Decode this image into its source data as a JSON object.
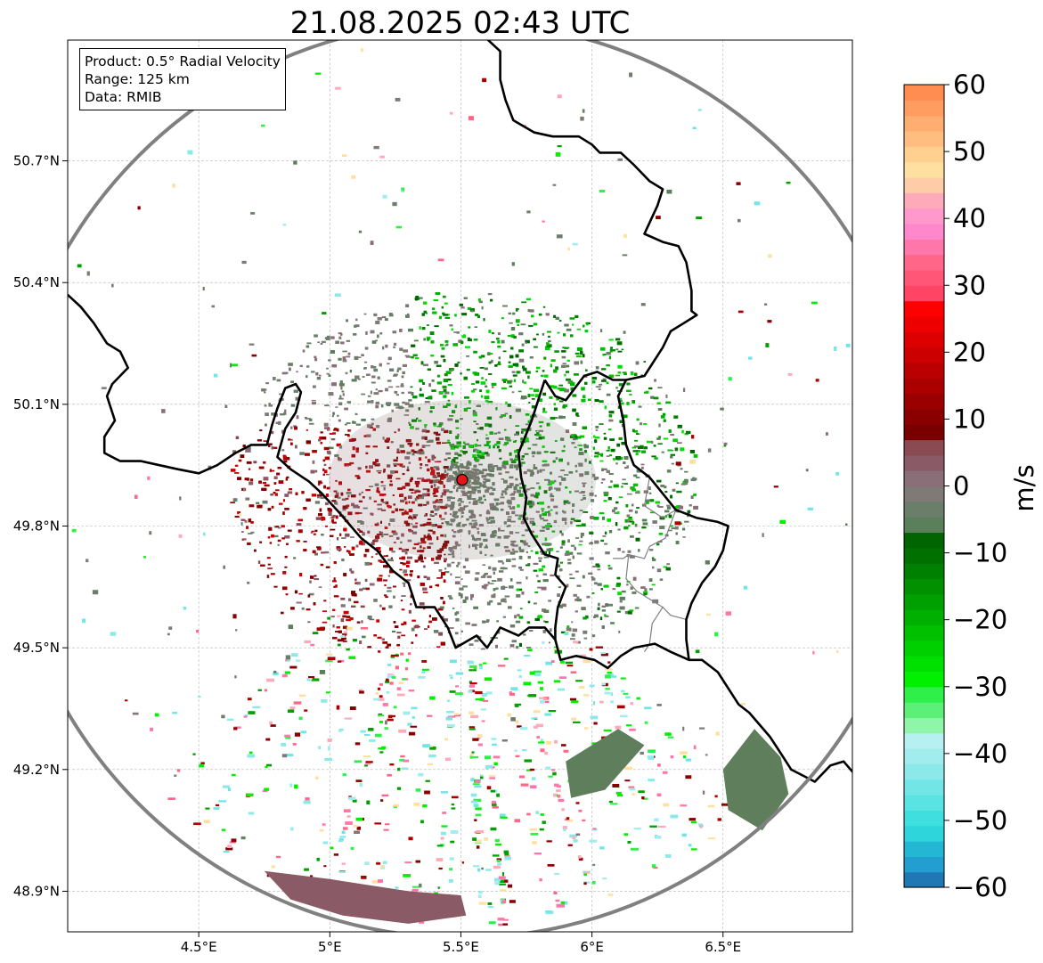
{
  "title": "21.08.2025 02:43 UTC",
  "info": {
    "product": "Product: 0.5° Radial Velocity",
    "range": "Range: 125 km",
    "data": "Data: RMIB"
  },
  "axes": {
    "lat_ticks": [
      {
        "value": 50.7,
        "label": "50.7°N"
      },
      {
        "value": 50.4,
        "label": "50.4°N"
      },
      {
        "value": 50.1,
        "label": "50.1°N"
      },
      {
        "value": 49.8,
        "label": "49.8°N"
      },
      {
        "value": 49.5,
        "label": "49.5°N"
      },
      {
        "value": 49.2,
        "label": "49.2°N"
      },
      {
        "value": 48.9,
        "label": "48.9°N"
      }
    ],
    "lon_ticks": [
      {
        "value": 4.5,
        "label": "4.5°E"
      },
      {
        "value": 5.0,
        "label": "5°E"
      },
      {
        "value": 5.5,
        "label": "5.5°E"
      },
      {
        "value": 6.0,
        "label": "6°E"
      },
      {
        "value": 6.5,
        "label": "6.5°E"
      }
    ],
    "lon_range": [
      4.0,
      7.0
    ],
    "lat_range": [
      48.8,
      51.0
    ],
    "grid": true
  },
  "radar": {
    "lon": 5.505,
    "lat": 49.914,
    "range_km": 125,
    "site_color": "#e8141a"
  },
  "colorbar": {
    "unit": "m/s",
    "min": -60,
    "max": 60,
    "tick_values": [
      60,
      50,
      40,
      30,
      20,
      10,
      0,
      -10,
      -20,
      -30,
      -40,
      -50,
      -60
    ],
    "tick_labels": [
      "60",
      "50",
      "40",
      "30",
      "20",
      "10",
      "0",
      "−10",
      "−20",
      "−30",
      "−40",
      "−50",
      "−60"
    ],
    "colors": [
      "#1f77b4",
      "#239ed0",
      "#24b7d4",
      "#2ed6dc",
      "#3fdfe0",
      "#5ae3e3",
      "#72e6e6",
      "#8be9e9",
      "#a1ecec",
      "#b7f0f0",
      "#8ff5a8",
      "#5cf078",
      "#2ef048",
      "#00f000",
      "#00e000",
      "#00d000",
      "#00c000",
      "#00b000",
      "#00a000",
      "#009000",
      "#008000",
      "#007000",
      "#006400",
      "#5b7f5b",
      "#6a7e6a",
      "#7f7a76",
      "#8a6e78",
      "#8a5a66",
      "#8a4a52",
      "#7a0000",
      "#8a0000",
      "#9a0000",
      "#aa0000",
      "#ba0000",
      "#cc0000",
      "#dd0000",
      "#ee0000",
      "#ff0000",
      "#ff4466",
      "#ff5577",
      "#ff6688",
      "#ff77aa",
      "#ff88cc",
      "#ff99cc",
      "#ffaabb",
      "#ffcca8",
      "#ffe0a0",
      "#ffd090",
      "#ffbe80",
      "#ffad70",
      "#ff9c60",
      "#ff8c50"
    ]
  },
  "borders": {
    "national": [
      [
        [
          4.0,
          50.37
        ],
        [
          4.05,
          50.34
        ],
        [
          4.1,
          50.3
        ],
        [
          4.15,
          50.25
        ],
        [
          4.2,
          50.23
        ],
        [
          4.23,
          50.19
        ],
        [
          4.17,
          50.15
        ],
        [
          4.15,
          50.12
        ],
        [
          4.18,
          50.06
        ],
        [
          4.14,
          50.02
        ],
        [
          4.14,
          49.98
        ],
        [
          4.2,
          49.96
        ],
        [
          4.24,
          49.96
        ],
        [
          4.28,
          49.96
        ],
        [
          4.35,
          49.95
        ],
        [
          4.42,
          49.94
        ],
        [
          4.5,
          49.93
        ],
        [
          4.57,
          49.95
        ],
        [
          4.64,
          49.98
        ],
        [
          4.7,
          50.0
        ],
        [
          4.76,
          50.0
        ],
        [
          4.78,
          50.05
        ],
        [
          4.8,
          50.09
        ],
        [
          4.83,
          50.14
        ],
        [
          4.87,
          50.15
        ],
        [
          4.89,
          50.13
        ],
        [
          4.87,
          50.08
        ],
        [
          4.83,
          50.04
        ],
        [
          4.8,
          49.97
        ],
        [
          4.85,
          49.94
        ],
        [
          4.92,
          49.91
        ],
        [
          4.97,
          49.88
        ],
        [
          5.04,
          49.83
        ],
        [
          5.08,
          49.8
        ],
        [
          5.12,
          49.77
        ],
        [
          5.18,
          49.74
        ],
        [
          5.24,
          49.69
        ],
        [
          5.3,
          49.66
        ],
        [
          5.33,
          49.6
        ],
        [
          5.4,
          49.6
        ],
        [
          5.45,
          49.55
        ],
        [
          5.48,
          49.5
        ],
        [
          5.56,
          49.53
        ],
        [
          5.6,
          49.5
        ],
        [
          5.65,
          49.55
        ],
        [
          5.72,
          49.53
        ],
        [
          5.76,
          49.55
        ],
        [
          5.82,
          49.55
        ],
        [
          5.86,
          49.52
        ],
        [
          5.88,
          49.47
        ],
        [
          5.94,
          49.48
        ],
        [
          6.01,
          49.47
        ],
        [
          6.06,
          49.45
        ],
        [
          6.11,
          49.48
        ],
        [
          6.16,
          49.5
        ],
        [
          6.24,
          49.51
        ],
        [
          6.3,
          49.49
        ],
        [
          6.37,
          49.47
        ],
        [
          6.42,
          49.47
        ],
        [
          6.48,
          49.44
        ],
        [
          6.56,
          49.36
        ],
        [
          6.6,
          49.34
        ],
        [
          6.68,
          49.28
        ],
        [
          6.71,
          49.25
        ],
        [
          6.76,
          49.2
        ],
        [
          6.85,
          49.17
        ],
        [
          6.91,
          49.21
        ],
        [
          6.96,
          49.22
        ],
        [
          7.0,
          49.19
        ]
      ],
      [
        [
          5.6,
          51.0
        ],
        [
          5.65,
          50.97
        ],
        [
          5.65,
          50.9
        ],
        [
          5.67,
          50.85
        ],
        [
          5.7,
          50.8
        ],
        [
          5.78,
          50.77
        ],
        [
          5.85,
          50.76
        ],
        [
          5.95,
          50.76
        ],
        [
          6.0,
          50.74
        ],
        [
          6.03,
          50.72
        ],
        [
          6.07,
          50.72
        ],
        [
          6.11,
          50.72
        ],
        [
          6.16,
          50.69
        ],
        [
          6.22,
          50.65
        ],
        [
          6.27,
          50.63
        ],
        [
          6.25,
          50.59
        ],
        [
          6.2,
          50.52
        ],
        [
          6.27,
          50.5
        ],
        [
          6.33,
          50.49
        ],
        [
          6.36,
          50.45
        ],
        [
          6.38,
          50.38
        ],
        [
          6.38,
          50.33
        ],
        [
          6.4,
          50.32
        ],
        [
          6.35,
          50.3
        ],
        [
          6.3,
          50.28
        ],
        [
          6.27,
          50.24
        ],
        [
          6.2,
          50.17
        ],
        [
          6.13,
          50.16
        ],
        [
          6.1,
          50.12
        ],
        [
          6.12,
          50.06
        ],
        [
          6.13,
          50.0
        ],
        [
          6.16,
          49.95
        ],
        [
          6.22,
          49.92
        ],
        [
          6.27,
          49.88
        ],
        [
          6.32,
          49.84
        ],
        [
          6.4,
          49.82
        ],
        [
          6.48,
          49.81
        ],
        [
          6.52,
          49.8
        ],
        [
          6.5,
          49.74
        ],
        [
          6.47,
          49.7
        ],
        [
          6.42,
          49.66
        ],
        [
          6.38,
          49.61
        ],
        [
          6.36,
          49.57
        ],
        [
          6.36,
          49.52
        ],
        [
          6.37,
          49.47
        ]
      ],
      [
        [
          5.82,
          50.16
        ],
        [
          5.86,
          50.12
        ],
        [
          5.9,
          50.11
        ],
        [
          5.97,
          50.17
        ],
        [
          6.02,
          50.18
        ],
        [
          6.08,
          50.16
        ],
        [
          6.13,
          50.16
        ]
      ],
      [
        [
          5.82,
          50.16
        ],
        [
          5.77,
          50.06
        ],
        [
          5.72,
          49.98
        ],
        [
          5.73,
          49.92
        ],
        [
          5.75,
          49.87
        ],
        [
          5.74,
          49.82
        ],
        [
          5.77,
          49.78
        ],
        [
          5.82,
          49.73
        ],
        [
          5.87,
          49.72
        ],
        [
          5.86,
          49.68
        ],
        [
          5.9,
          49.65
        ],
        [
          5.87,
          49.6
        ],
        [
          5.86,
          49.55
        ],
        [
          5.86,
          49.52
        ]
      ]
    ],
    "regional": [
      [
        [
          6.22,
          49.92
        ],
        [
          6.2,
          49.85
        ],
        [
          6.27,
          49.82
        ],
        [
          6.32,
          49.84
        ],
        [
          6.28,
          49.77
        ],
        [
          6.22,
          49.75
        ],
        [
          6.2,
          49.72
        ],
        [
          6.14,
          49.73
        ],
        [
          6.13,
          49.67
        ],
        [
          6.17,
          49.64
        ],
        [
          6.22,
          49.62
        ],
        [
          6.27,
          49.6
        ],
        [
          6.23,
          49.56
        ],
        [
          6.22,
          49.51
        ],
        [
          6.2,
          49.49
        ]
      ],
      [
        [
          6.36,
          49.57
        ],
        [
          6.3,
          49.58
        ],
        [
          6.27,
          49.6
        ]
      ],
      [
        [
          6.08,
          49.72
        ],
        [
          6.12,
          49.72
        ],
        [
          6.14,
          49.73
        ]
      ]
    ]
  }
}
